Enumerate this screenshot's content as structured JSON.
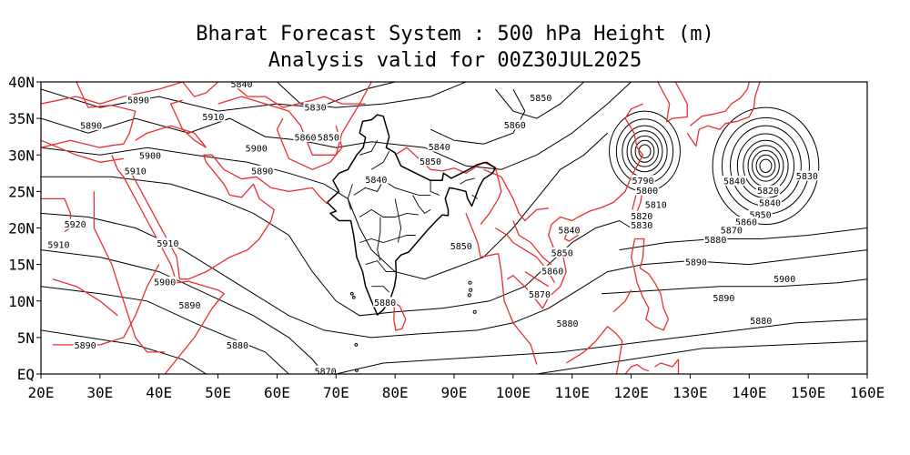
{
  "title": "Bharat Forecast System : 500 hPa Height (m)",
  "subtitle": "Analysis valid for 00Z30JUL2025",
  "map": {
    "lon_range": [
      20,
      160
    ],
    "lat_range": [
      0,
      40
    ],
    "x_ticks": [
      "20E",
      "30E",
      "40E",
      "50E",
      "60E",
      "70E",
      "80E",
      "90E",
      "100E",
      "110E",
      "120E",
      "130E",
      "140E",
      "150E",
      "160E"
    ],
    "y_ticks": [
      "EQ",
      "5N",
      "10N",
      "15N",
      "20N",
      "25N",
      "30N",
      "35N",
      "40N"
    ],
    "coastline_color": "#e83030",
    "india_boundary_color": "#000000",
    "contour_color": "#000000"
  },
  "contour_labels": [
    {
      "text": "5890",
      "lon": 36.5,
      "lat": 37.5
    },
    {
      "text": "5890",
      "lon": 28.5,
      "lat": 34.0
    },
    {
      "text": "5910",
      "lon": 49.2,
      "lat": 35.2
    },
    {
      "text": "5900",
      "lon": 38.5,
      "lat": 29.9
    },
    {
      "text": "5910",
      "lon": 36.0,
      "lat": 27.8
    },
    {
      "text": "5900",
      "lon": 56.5,
      "lat": 30.9
    },
    {
      "text": "5890",
      "lon": 57.5,
      "lat": 27.8
    },
    {
      "text": "5860",
      "lon": 64.8,
      "lat": 32.4
    },
    {
      "text": "5850",
      "lon": 68.7,
      "lat": 32.4
    },
    {
      "text": "5830",
      "lon": 66.5,
      "lat": 36.5
    },
    {
      "text": "5840",
      "lon": 54.0,
      "lat": 39.7
    },
    {
      "text": "5920",
      "lon": 25.8,
      "lat": 20.5
    },
    {
      "text": "5910",
      "lon": 23.0,
      "lat": 17.7
    },
    {
      "text": "5910",
      "lon": 41.5,
      "lat": 17.9
    },
    {
      "text": "5900",
      "lon": 41.0,
      "lat": 12.6
    },
    {
      "text": "5890",
      "lon": 45.2,
      "lat": 9.4
    },
    {
      "text": "5890",
      "lon": 27.5,
      "lat": 3.9
    },
    {
      "text": "5880",
      "lon": 53.3,
      "lat": 3.9
    },
    {
      "text": "5870",
      "lon": 68.2,
      "lat": 0.4
    },
    {
      "text": "5840",
      "lon": 87.5,
      "lat": 31.1
    },
    {
      "text": "5850",
      "lon": 86.0,
      "lat": 29.1
    },
    {
      "text": "5840",
      "lon": 76.8,
      "lat": 26.6
    },
    {
      "text": "5850",
      "lon": 91.2,
      "lat": 17.5
    },
    {
      "text": "5880",
      "lon": 78.3,
      "lat": 9.8
    },
    {
      "text": "5850",
      "lon": 104.7,
      "lat": 37.8
    },
    {
      "text": "5860",
      "lon": 100.3,
      "lat": 34.1
    },
    {
      "text": "5840",
      "lon": 109.5,
      "lat": 19.7
    },
    {
      "text": "5850",
      "lon": 108.3,
      "lat": 16.6
    },
    {
      "text": "5860",
      "lon": 106.7,
      "lat": 14.1
    },
    {
      "text": "5870",
      "lon": 104.5,
      "lat": 10.9
    },
    {
      "text": "5880",
      "lon": 109.2,
      "lat": 6.9
    },
    {
      "text": "5790",
      "lon": 122.0,
      "lat": 26.5
    },
    {
      "text": "5800",
      "lon": 122.7,
      "lat": 25.1
    },
    {
      "text": "5810",
      "lon": 124.2,
      "lat": 23.2
    },
    {
      "text": "5820",
      "lon": 121.8,
      "lat": 21.6
    },
    {
      "text": "5830",
      "lon": 121.8,
      "lat": 20.4
    },
    {
      "text": "5840",
      "lon": 137.5,
      "lat": 26.4
    },
    {
      "text": "5820",
      "lon": 143.2,
      "lat": 25.1
    },
    {
      "text": "5830",
      "lon": 149.8,
      "lat": 27.1
    },
    {
      "text": "5840",
      "lon": 143.5,
      "lat": 23.4
    },
    {
      "text": "5850",
      "lon": 141.9,
      "lat": 21.8
    },
    {
      "text": "5860",
      "lon": 139.5,
      "lat": 20.8
    },
    {
      "text": "5870",
      "lon": 137.0,
      "lat": 19.7
    },
    {
      "text": "5880",
      "lon": 134.3,
      "lat": 18.4
    },
    {
      "text": "5890",
      "lon": 131.0,
      "lat": 15.3
    },
    {
      "text": "5900",
      "lon": 146.0,
      "lat": 13.0
    },
    {
      "text": "5890",
      "lon": 135.7,
      "lat": 10.4
    },
    {
      "text": "5880",
      "lon": 142.0,
      "lat": 7.3
    }
  ],
  "lows": [
    {
      "lon": 122.3,
      "lat": 30.5
    },
    {
      "lon": 142.8,
      "lat": 28.5
    }
  ]
}
